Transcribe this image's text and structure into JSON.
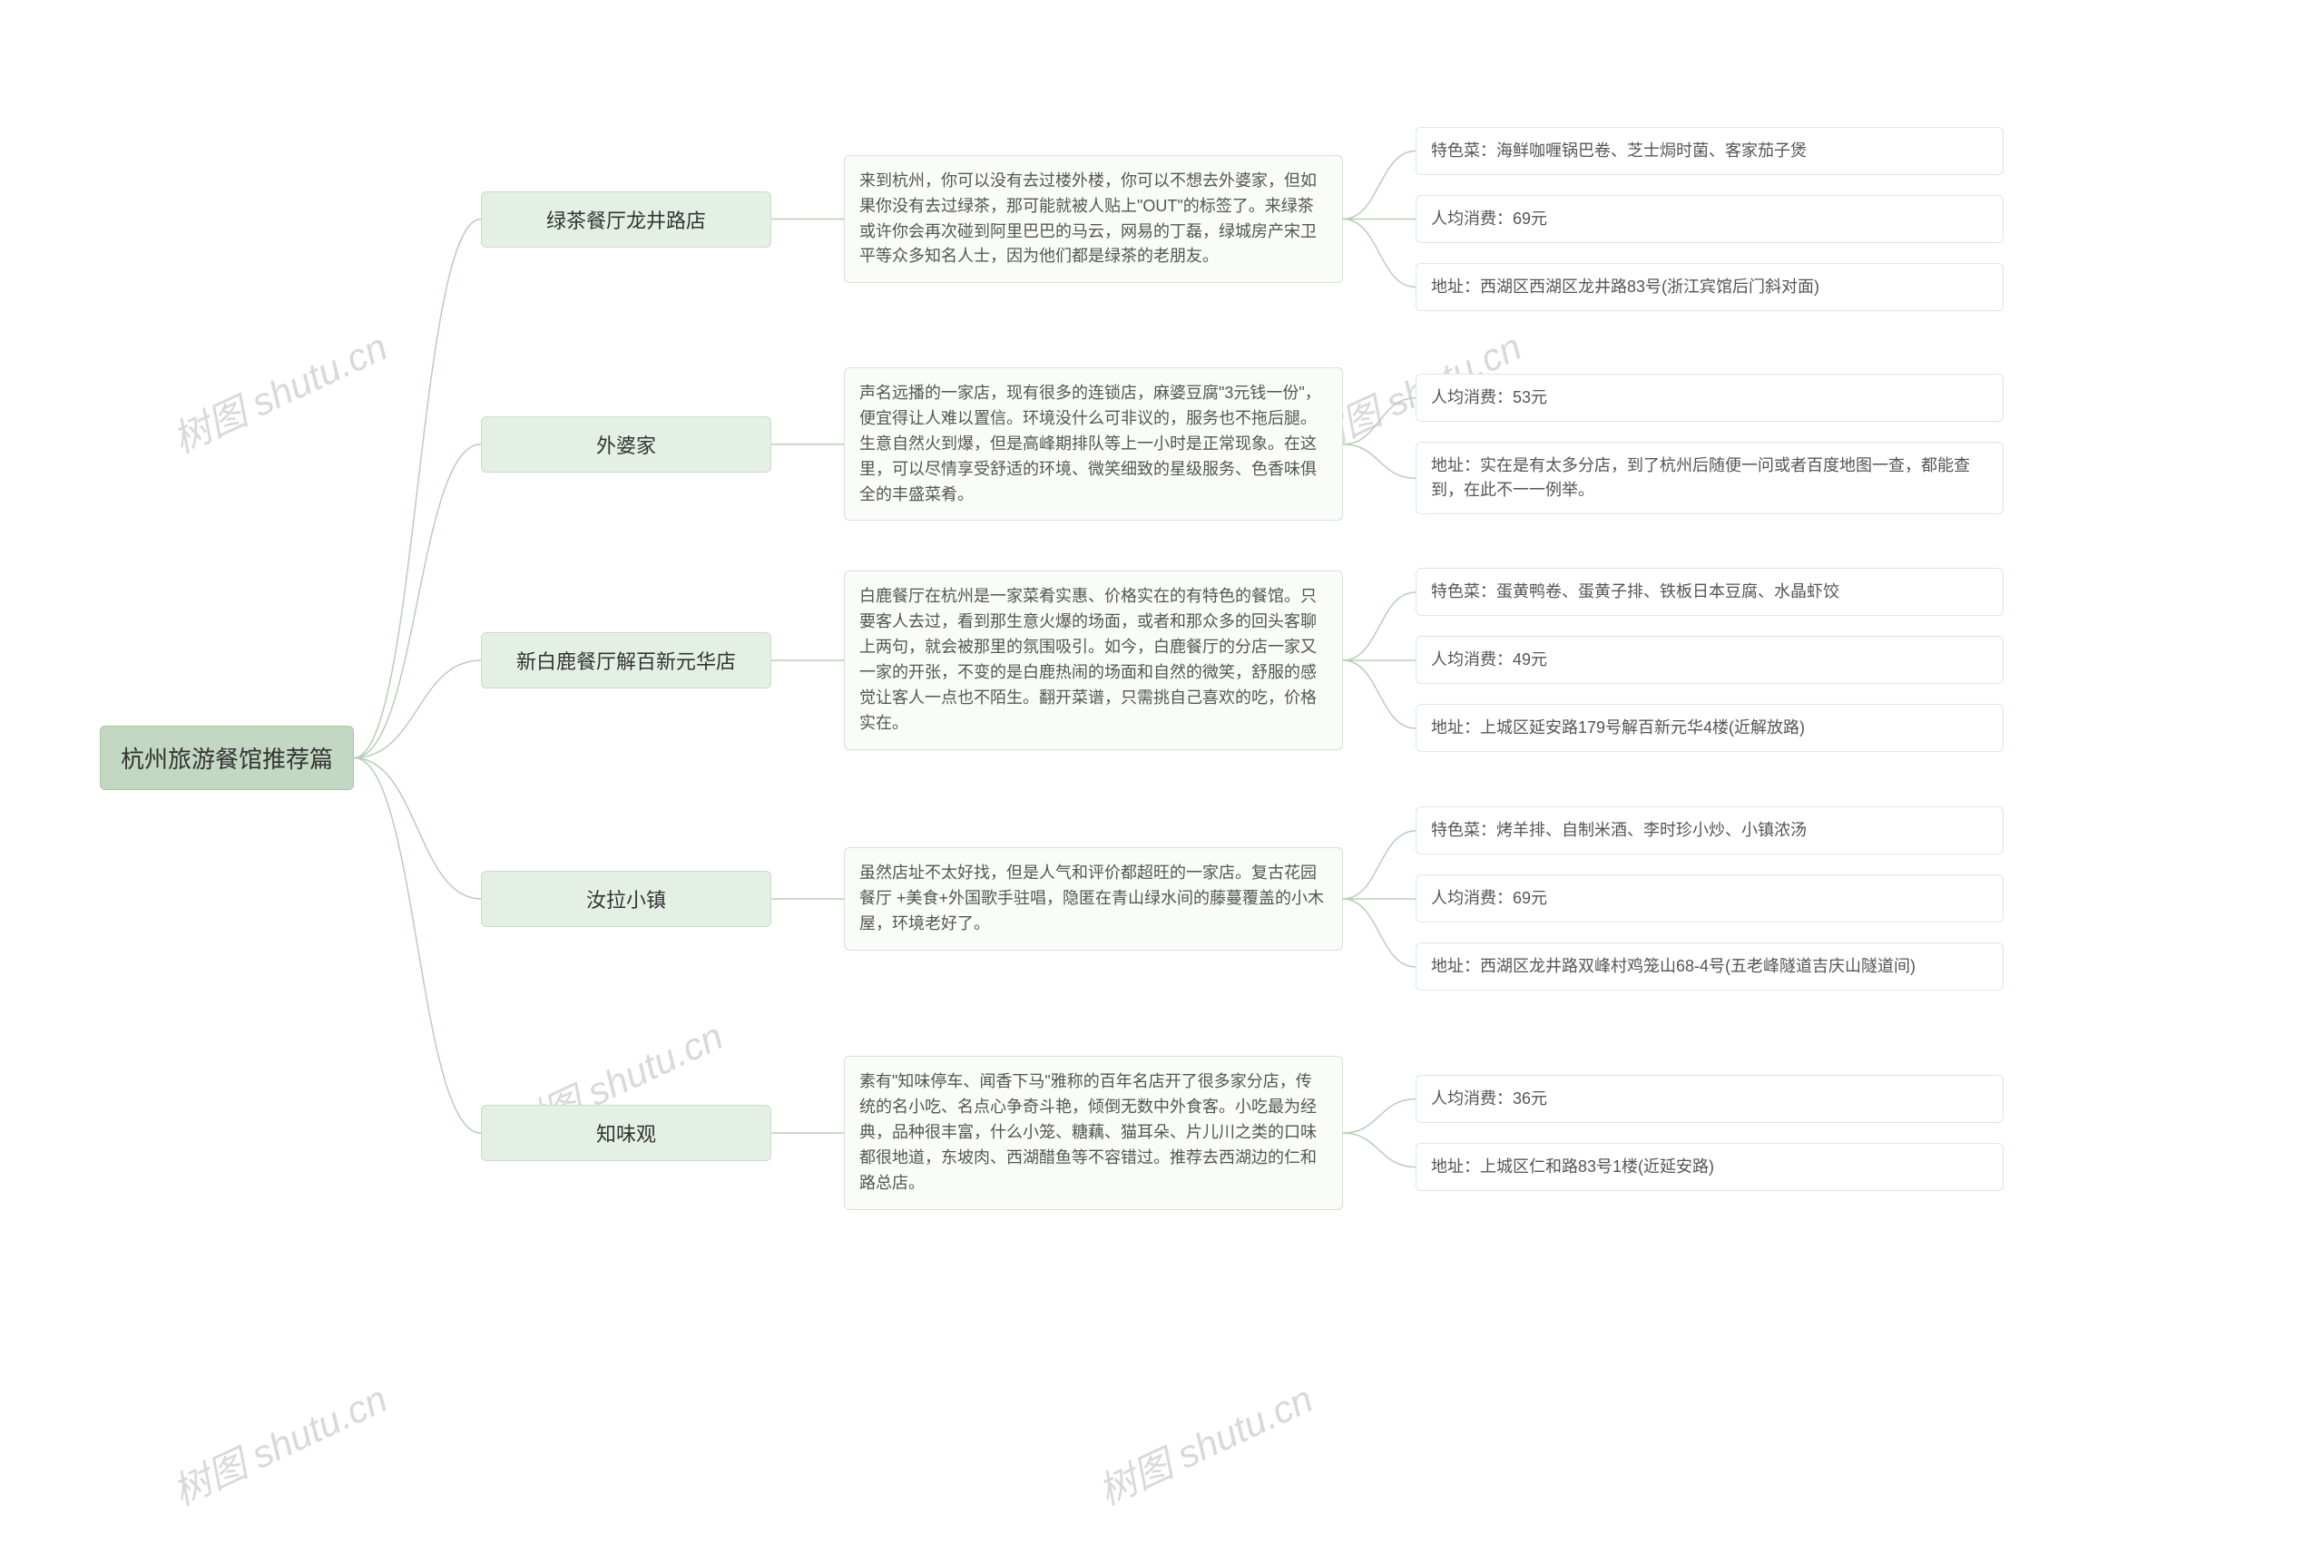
{
  "style": {
    "background": "#ffffff",
    "root_bg": "#c3d8c3",
    "root_border": "#a8c4a8",
    "l1_bg": "#e5f0e5",
    "l1_border": "#c9dcc9",
    "l2_bg": "#f9fcf9",
    "l2_border": "#d5e3d5",
    "l3_bg": "#ffffff",
    "l3_border": "#dce8dc",
    "connector_color": "#b8ceb8",
    "watermark_color": "#d9d9d9",
    "text_color": "#333333",
    "subtext_color": "#555555",
    "root_fontsize": 26,
    "l1_fontsize": 22,
    "l2_fontsize": 18,
    "l3_fontsize": 18,
    "border_radius": 6
  },
  "watermark_text": "树图 shutu.cn",
  "root": "杭州旅游餐馆推荐篇",
  "branches": [
    {
      "name": "绿茶餐厅龙井路店",
      "desc": "来到杭州，你可以没有去过楼外楼，你可以不想去外婆家，但如果你没有去过绿茶，那可能就被人贴上\"OUT\"的标签了。来绿茶或许你会再次碰到阿里巴巴的马云，网易的丁磊，绿城房产宋卫平等众多知名人士，因为他们都是绿茶的老朋友。",
      "details": [
        "特色菜：海鲜咖喱锅巴卷、芝士焗时菌、客家茄子煲",
        "人均消费：69元",
        "地址：西湖区西湖区龙井路83号(浙江宾馆后门斜对面)"
      ]
    },
    {
      "name": "外婆家",
      "desc": "声名远播的一家店，现有很多的连锁店，麻婆豆腐\"3元钱一份\"，便宜得让人难以置信。环境没什么可非议的，服务也不拖后腿。生意自然火到爆，但是高峰期排队等上一小时是正常现象。在这里，可以尽情享受舒适的环境、微笑细致的星级服务、色香味俱全的丰盛菜肴。",
      "details": [
        "人均消费：53元",
        "地址：实在是有太多分店，到了杭州后随便一问或者百度地图一查，都能查到，在此不一一例举。"
      ]
    },
    {
      "name": "新白鹿餐厅解百新元华店",
      "desc": "白鹿餐厅在杭州是一家菜肴实惠、价格实在的有特色的餐馆。只要客人去过，看到那生意火爆的场面，或者和那众多的回头客聊上两句，就会被那里的氛围吸引。如今，白鹿餐厅的分店一家又一家的开张，不变的是白鹿热闹的场面和自然的微笑，舒服的感觉让客人一点也不陌生。翻开菜谱，只需挑自己喜欢的吃，价格实在。",
      "details": [
        "特色菜：蛋黄鸭卷、蛋黄子排、铁板日本豆腐、水晶虾饺",
        "人均消费：49元",
        "地址：上城区延安路179号解百新元华4楼(近解放路)"
      ]
    },
    {
      "name": "汝拉小镇",
      "desc": "虽然店址不太好找，但是人气和评价都超旺的一家店。复古花园餐厅 +美食+外国歌手驻唱，隐匿在青山绿水间的藤蔓覆盖的小木屋，环境老好了。",
      "details": [
        "特色菜：烤羊排、自制米酒、李时珍小炒、小镇浓汤",
        "人均消费：69元",
        "地址：西湖区龙井路双峰村鸡笼山68-4号(五老峰隧道吉庆山隧道间)"
      ]
    },
    {
      "name": "知味观",
      "desc": "素有\"知味停车、闻香下马\"雅称的百年名店开了很多家分店，传统的名小吃、名点心争奇斗艳，倾倒无数中外食客。小吃最为经典，品种很丰富，什么小笼、糖藕、猫耳朵、片儿川之类的口味都很地道，东坡肉、西湖醋鱼等不容错过。推荐去西湖边的仁和路总店。",
      "details": [
        "人均消费：36元",
        "地址：上城区仁和路83号1楼(近延安路)"
      ]
    }
  ],
  "layout": {
    "branch_gaps": [
      62,
      52,
      60,
      72,
      0
    ],
    "l3_widths_special": {
      "3": 648
    }
  }
}
